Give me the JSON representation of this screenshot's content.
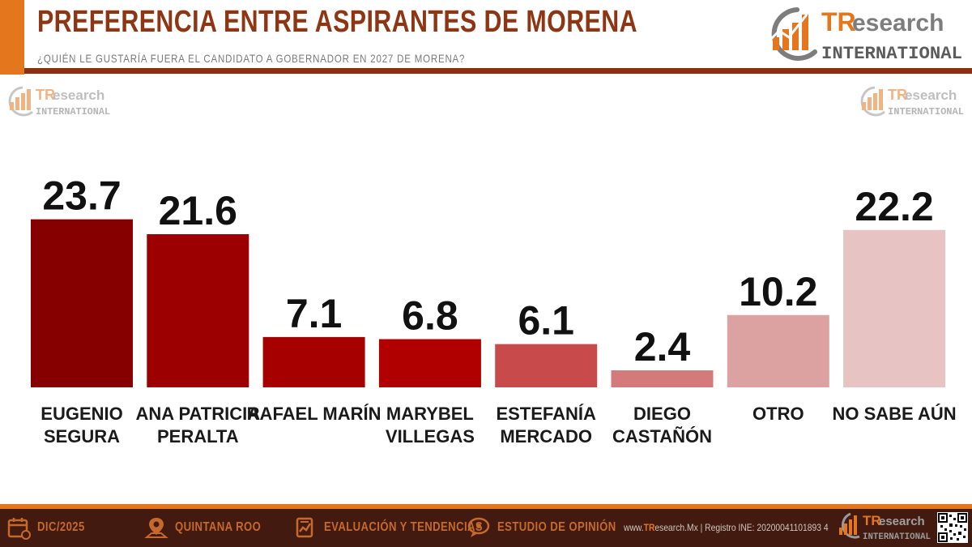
{
  "header": {
    "title": "PREFERENCIA ENTRE ASPIRANTES DE MORENA",
    "subtitle": "¿QUIÉN LE GUSTARÍA FUERA EL CANDIDATO A GOBERNADOR EN 2027 DE MORENA?"
  },
  "brand": {
    "name_tr": "TR",
    "name_rest": "esearch",
    "tagline": "INTERNATIONAL"
  },
  "colors": {
    "orange": "#e4761e",
    "brown": "#8e3613",
    "footer_bg": "#421a0f",
    "bar_colors": [
      "#870000",
      "#9c0000",
      "#a70000",
      "#b00000",
      "#c84a4a",
      "#d47a7a",
      "#dca2a2",
      "#e8c3c3"
    ]
  },
  "chart_data": {
    "type": "bar",
    "title": "PREFERENCIA ENTRE ASPIRANTES DE MORENA",
    "subtitle": "¿QUIÉN LE GUSTARÍA FUERA EL CANDIDATO A GOBERNADOR EN 2027 DE MORENA?",
    "categories": [
      [
        "EUGENIO",
        "SEGURA"
      ],
      [
        "ANA PATRICIA",
        "PERALTA"
      ],
      [
        "RAFAEL MARÍN"
      ],
      [
        "MARYBEL",
        "VILLEGAS"
      ],
      [
        "ESTEFANÍA",
        "MERCADO"
      ],
      [
        "DIEGO",
        "CASTAÑÓN"
      ],
      [
        "OTRO"
      ],
      [
        "NO SABE AÚN"
      ]
    ],
    "values": [
      23.7,
      21.6,
      7.1,
      6.8,
      6.1,
      2.4,
      10.2,
      22.2
    ],
    "value_labels": [
      "23.7",
      "21.6",
      "7.1",
      "6.8",
      "6.1",
      "2.4",
      "10.2",
      "22.2"
    ],
    "xlabel": "",
    "ylabel": "",
    "ylim": [
      0,
      24
    ],
    "grid": false,
    "legend": "none"
  },
  "footer": {
    "date": "DIC/2025",
    "state": "QUINTANA ROO",
    "evaluation": "EVALUACIÓN Y TENDENCIAS",
    "study": "ESTUDIO DE OPINIÓN",
    "web_prefix": "www.",
    "web_tr": "TR",
    "web_rest": "esearch.Mx",
    "registry": " | Registro INE: 20200041101893 4",
    "icons": [
      "calendar-icon",
      "map-pin-icon",
      "clipboard-chart-icon",
      "speech-bubble-icon",
      "qr-code-icon"
    ]
  }
}
